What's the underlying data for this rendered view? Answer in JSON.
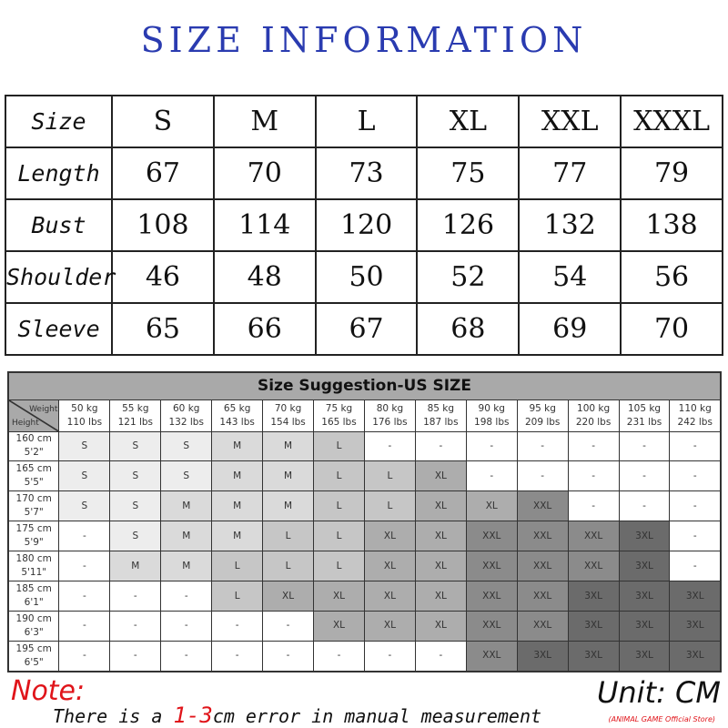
{
  "title": "SIZE INFORMATION",
  "size_table": {
    "header_label": "Size",
    "sizes": [
      "S",
      "M",
      "L",
      "XL",
      "XXL",
      "XXXL"
    ],
    "rows": [
      {
        "label": "Length",
        "values": [
          "67",
          "70",
          "73",
          "75",
          "77",
          "79"
        ]
      },
      {
        "label": "Bust",
        "values": [
          "108",
          "114",
          "120",
          "126",
          "132",
          "138"
        ]
      },
      {
        "label": "Shoulder",
        "values": [
          "46",
          "48",
          "50",
          "52",
          "54",
          "56"
        ]
      },
      {
        "label": "Sleeve",
        "values": [
          "65",
          "66",
          "67",
          "68",
          "69",
          "70"
        ]
      }
    ]
  },
  "suggestion": {
    "title": "Size Suggestion-US SIZE",
    "corner_weight": "Weight",
    "corner_height": "Height",
    "weights": [
      {
        "kg": "50 kg",
        "lbs": "110 lbs"
      },
      {
        "kg": "55 kg",
        "lbs": "121 lbs"
      },
      {
        "kg": "60 kg",
        "lbs": "132 lbs"
      },
      {
        "kg": "65 kg",
        "lbs": "143 lbs"
      },
      {
        "kg": "70 kg",
        "lbs": "154 lbs"
      },
      {
        "kg": "75 kg",
        "lbs": "165 lbs"
      },
      {
        "kg": "80 kg",
        "lbs": "176 lbs"
      },
      {
        "kg": "85 kg",
        "lbs": "187 lbs"
      },
      {
        "kg": "90 kg",
        "lbs": "198 lbs"
      },
      {
        "kg": "95 kg",
        "lbs": "209 lbs"
      },
      {
        "kg": "100 kg",
        "lbs": "220 lbs"
      },
      {
        "kg": "105 kg",
        "lbs": "231 lbs"
      },
      {
        "kg": "110 kg",
        "lbs": "242 lbs"
      }
    ],
    "rows": [
      {
        "cm": "160 cm",
        "ft": "5'2\"",
        "sizes": [
          "S",
          "S",
          "S",
          "M",
          "M",
          "L",
          "-",
          "-",
          "-",
          "-",
          "-",
          "-",
          "-"
        ]
      },
      {
        "cm": "165 cm",
        "ft": "5'5\"",
        "sizes": [
          "S",
          "S",
          "S",
          "M",
          "M",
          "L",
          "L",
          "XL",
          "-",
          "-",
          "-",
          "-",
          "-"
        ]
      },
      {
        "cm": "170 cm",
        "ft": "5'7\"",
        "sizes": [
          "S",
          "S",
          "M",
          "M",
          "M",
          "L",
          "L",
          "XL",
          "XL",
          "XXL",
          "-",
          "-",
          "-"
        ]
      },
      {
        "cm": "175 cm",
        "ft": "5'9\"",
        "sizes": [
          "-",
          "S",
          "M",
          "M",
          "L",
          "L",
          "XL",
          "XL",
          "XXL",
          "XXL",
          "XXL",
          "3XL",
          "-"
        ]
      },
      {
        "cm": "180 cm",
        "ft": "5'11\"",
        "sizes": [
          "-",
          "M",
          "M",
          "L",
          "L",
          "L",
          "XL",
          "XL",
          "XXL",
          "XXL",
          "XXL",
          "3XL",
          "-"
        ]
      },
      {
        "cm": "185 cm",
        "ft": "6'1\"",
        "sizes": [
          "-",
          "-",
          "-",
          "L",
          "XL",
          "XL",
          "XL",
          "XL",
          "XXL",
          "XXL",
          "3XL",
          "3XL",
          "3XL"
        ]
      },
      {
        "cm": "190 cm",
        "ft": "6'3\"",
        "sizes": [
          "-",
          "-",
          "-",
          "-",
          "-",
          "XL",
          "XL",
          "XL",
          "XXL",
          "XXL",
          "3XL",
          "3XL",
          "3XL"
        ]
      },
      {
        "cm": "195 cm",
        "ft": "6'5\"",
        "sizes": [
          "-",
          "-",
          "-",
          "-",
          "-",
          "-",
          "-",
          "-",
          "XXL",
          "3XL",
          "3XL",
          "3XL",
          "3XL"
        ]
      }
    ],
    "shades": {
      "S": "#ededed",
      "M": "#dadada",
      "L": "#c6c6c6",
      "XL": "#adadad",
      "XXL": "#8b8b8b",
      "3XL": "#6b6b6b",
      "-": "#ffffff"
    }
  },
  "note": {
    "label": "Note:",
    "text_before": "There is a ",
    "highlight": "1-3",
    "text_after": "cm error in manual measurement"
  },
  "unit": "Unit: CM",
  "store": "(ANIMAL GAME Official Store)",
  "colors": {
    "title": "#2a3bb0",
    "note": "#e0141a"
  }
}
